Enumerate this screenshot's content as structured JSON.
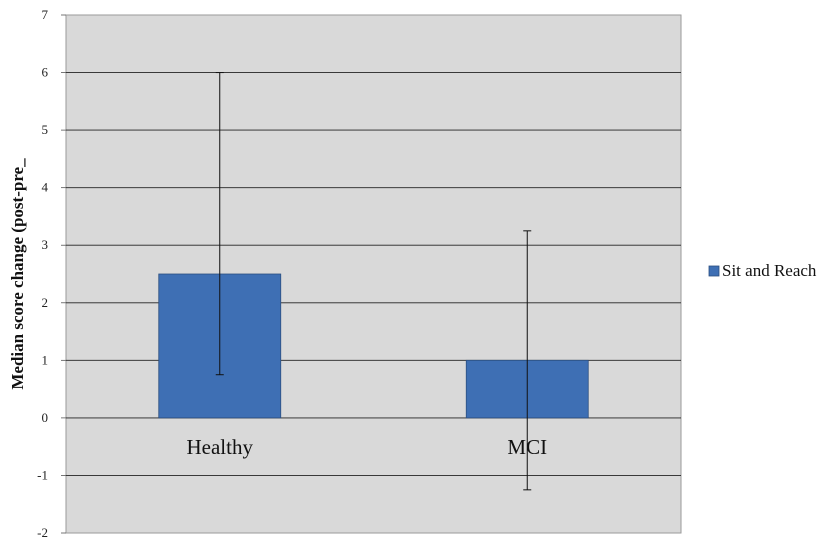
{
  "chart_data": {
    "type": "bar",
    "title": "",
    "xlabel": "",
    "ylabel": "Median score change (post-pre_",
    "ylim": [
      -2,
      7
    ],
    "yticks": [
      -2,
      -1,
      0,
      1,
      2,
      3,
      4,
      5,
      6,
      7
    ],
    "grid": true,
    "legend_position": "right",
    "categories": [
      "Healthy",
      "MCI"
    ],
    "series": [
      {
        "name": "Sit and Reach",
        "color": "#3e6fb4",
        "values": [
          2.5,
          1.0
        ],
        "error_low": [
          0.75,
          -1.25
        ],
        "error_high": [
          6.0,
          3.25
        ]
      }
    ],
    "plot_background": "#d9d9d9"
  }
}
